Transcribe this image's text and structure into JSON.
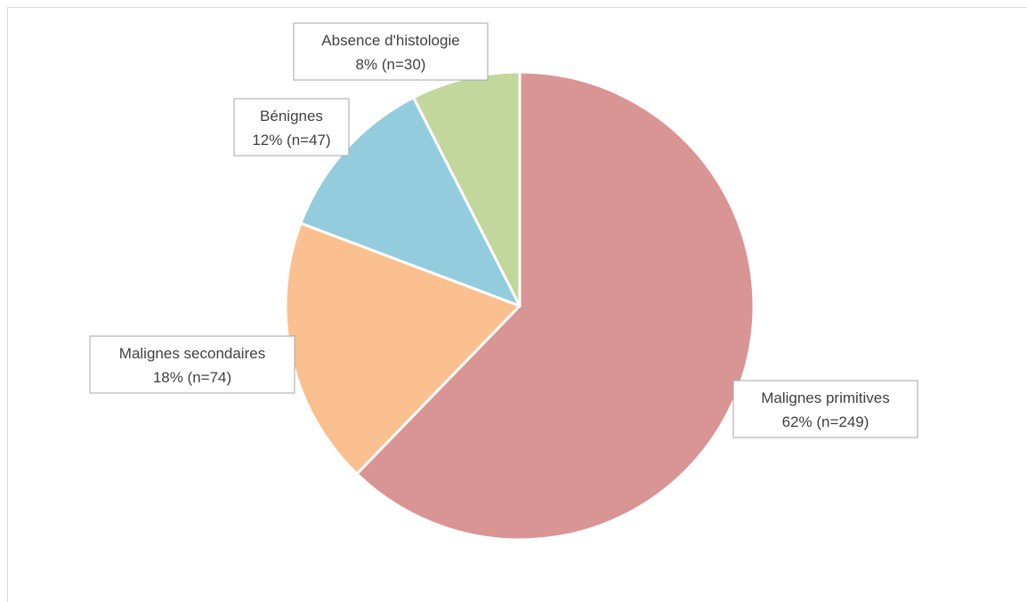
{
  "chart_data": {
    "type": "pie",
    "start_angle_deg": 0,
    "direction": "clockwise",
    "slices": [
      {
        "name": "Malignes primitives",
        "value": 249,
        "label": "62% (n=249)",
        "color": "#D99594"
      },
      {
        "name": "Malignes secondaires",
        "value": 74,
        "label": "18% (n=74)",
        "color": "#FAC090"
      },
      {
        "name": "Bénignes",
        "value": 47,
        "label": "12% (n=47)",
        "color": "#93CDDD"
      },
      {
        "name": "Absence d'histologie",
        "value": 30,
        "label": "8% (n=30)",
        "color": "#C3D69B"
      }
    ],
    "legend": "none",
    "data_labels": "callout-boxes"
  }
}
